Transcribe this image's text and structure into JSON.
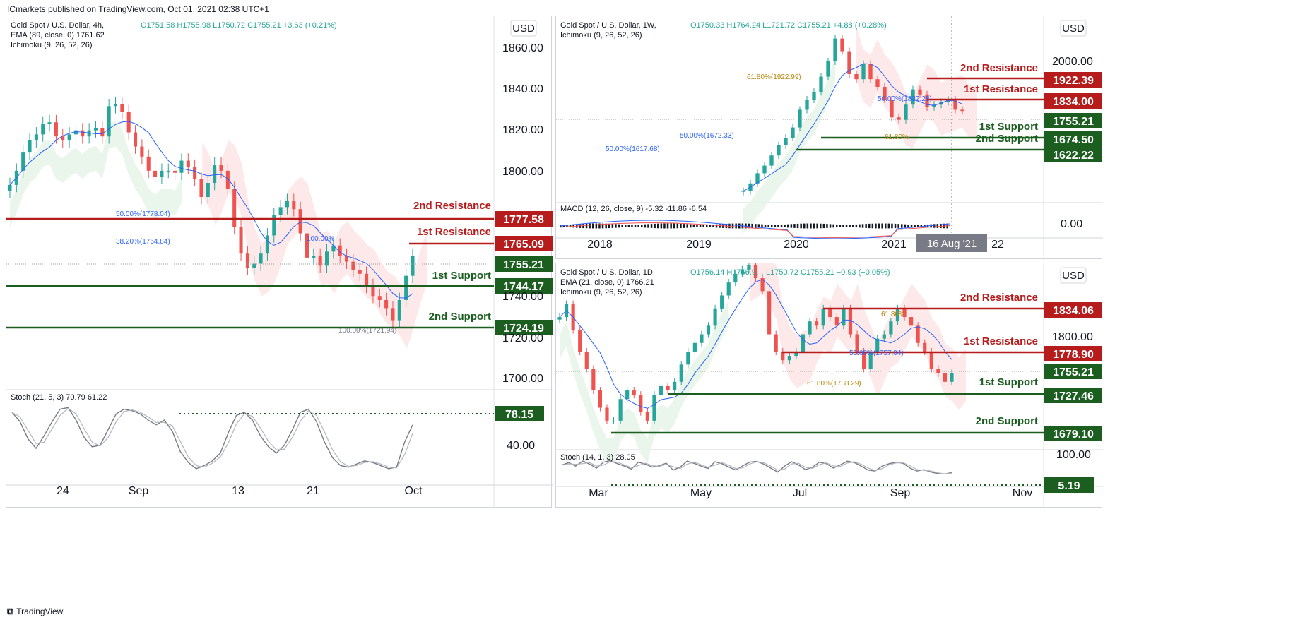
{
  "header": {
    "publisher": "ICmarkets published on TradingView.com, Oct 01, 2021 02:38 UTC+1"
  },
  "footer": {
    "brand": "TradingView"
  },
  "colors": {
    "resistance": "#b71c1c",
    "support": "#1b5e20",
    "current": "#1b5e20",
    "up_candle": "#26a69a",
    "down_candle": "#ef5350",
    "ema": "#2962ff",
    "fib_blue": "#2962ff",
    "fib_gold": "#b8860b",
    "stoch": "#787b86",
    "cloud_green": "#e8f5e9",
    "cloud_red": "#fde7e7",
    "date_badge": "#787b86"
  },
  "chart_data": [
    {
      "id": "h4",
      "type": "candlestick",
      "title": "Gold Spot / U.S. Dollar, 4h,",
      "ohlc": "O1751.58 H1755.98 L1750.72 C1755.21 +3.63 (+0.21%)",
      "indicators": [
        "EMA (89, close, 0)  1761.62",
        "Ichimoku (9, 26, 52, 26)"
      ],
      "currency": "USD",
      "ylim": [
        1690,
        1870
      ],
      "y_ticks": [
        "1860.00",
        "1840.00",
        "1820.00",
        "1800.00",
        "1740.00",
        "1720.00",
        "1700.00"
      ],
      "x_ticks": [
        "24",
        "Sep",
        "13",
        "21",
        "Oct"
      ],
      "levels": [
        {
          "label": "2nd Resistance",
          "value": "1777.58",
          "kind": "resistance"
        },
        {
          "label": "1st Resistance",
          "value": "1765.09",
          "kind": "resistance"
        },
        {
          "label": "",
          "value": "1755.21",
          "kind": "current"
        },
        {
          "label": "1st Support",
          "value": "1744.17",
          "kind": "support"
        },
        {
          "label": "2nd Support",
          "value": "1724.19",
          "kind": "support"
        }
      ],
      "fib_labels": [
        "50.00%(1778.04)",
        "38.20%(1764.84)",
        "100.00%",
        "100.00%(1721.94)"
      ],
      "closes": [
        1790,
        1797,
        1806,
        1812,
        1815,
        1820,
        1821,
        1814,
        1812,
        1815,
        1817,
        1814,
        1817,
        1818,
        1814,
        1829,
        1830,
        1826,
        1816,
        1809,
        1804,
        1797,
        1794,
        1797,
        1797,
        1796,
        1802,
        1799,
        1793,
        1784,
        1791,
        1800,
        1797,
        1788,
        1769,
        1756,
        1749,
        1751,
        1756,
        1765,
        1775,
        1779,
        1782,
        1778,
        1766,
        1754,
        1755,
        1750,
        1757,
        1760,
        1755,
        1752,
        1748,
        1746,
        1740,
        1735,
        1733,
        1729,
        1723,
        1733,
        1745,
        1755
      ],
      "stoch": {
        "label": "Stoch (21, 5, 3)",
        "k": "70.79",
        "d": "61.22",
        "level": "78.15",
        "y_tick": "40.00",
        "values": [
          82,
          70,
          48,
          36,
          52,
          70,
          86,
          88,
          72,
          50,
          38,
          40,
          60,
          80,
          86,
          84,
          80,
          72,
          66,
          72,
          58,
          32,
          18,
          10,
          14,
          20,
          30,
          56,
          78,
          82,
          72,
          52,
          38,
          30,
          40,
          60,
          82,
          86,
          70,
          44,
          24,
          14,
          12,
          16,
          20,
          18,
          14,
          10,
          12,
          44,
          66
        ]
      }
    },
    {
      "id": "w1",
      "type": "candlestick",
      "title": "Gold Spot / U.S. Dollar, 1W,",
      "ohlc": "O1750.33 H1764.24 L1721.72 C1755.21 +4.88 (+0.28%)",
      "indicators": [
        "Ichimoku (9, 26, 52, 26)"
      ],
      "currency": "USD",
      "ylim": [
        1500,
        2100
      ],
      "y_ticks": [
        "2000.00"
      ],
      "x_ticks": [
        "2018",
        "2019",
        "2020",
        "2021",
        "22"
      ],
      "date_badge": "16 Aug '21",
      "levels": [
        {
          "label": "2nd Resistance",
          "value": "1922.39",
          "kind": "resistance"
        },
        {
          "label": "1st Resistance",
          "value": "1834.00",
          "kind": "resistance"
        },
        {
          "label": "",
          "value": "1755.21",
          "kind": "current"
        },
        {
          "label": "1st Support",
          "value": "1674.50",
          "kind": "support"
        },
        {
          "label": "2nd Support",
          "value": "1622.22",
          "kind": "support"
        }
      ],
      "fib_labels": [
        "61.80%(1922.99)",
        "50.00%(1832.28)",
        "50.00%(1672.33)",
        "50.00%(1617.68)",
        "61.80%"
      ],
      "closes": [
        1440,
        1470,
        1510,
        1540,
        1580,
        1620,
        1650,
        1690,
        1760,
        1800,
        1830,
        1890,
        1950,
        2040,
        1990,
        1900,
        1880,
        1940,
        1880,
        1850,
        1800,
        1730,
        1720,
        1780,
        1840,
        1820,
        1770,
        1780,
        1790,
        1800,
        1760,
        1755
      ],
      "macd": {
        "label": "MACD (12, 26, close, 9)",
        "v1": "-5.32",
        "v2": "-11.86",
        "v3": "-6.54",
        "y_tick": "0.00"
      }
    },
    {
      "id": "d1",
      "type": "candlestick",
      "title": "Gold Spot / U.S. Dollar, 1D,",
      "ohlc": "O1756.14 H1756.9… L1750.72 C1755.21 −0.93 (−0.05%)",
      "indicators": [
        "EMA (21, close, 0)  1766.21",
        "Ichimoku (9, 26, 52, 26)"
      ],
      "currency": "USD",
      "ylim": [
        1668,
        1874
      ],
      "y_ticks": [
        "1800.00"
      ],
      "x_ticks": [
        "Mar",
        "May",
        "Jul",
        "Sep",
        "Nov"
      ],
      "levels": [
        {
          "label": "2nd Resistance",
          "value": "1834.06",
          "kind": "resistance"
        },
        {
          "label": "1st Resistance",
          "value": "1778.90",
          "kind": "resistance"
        },
        {
          "label": "",
          "value": "1755.21",
          "kind": "current"
        },
        {
          "label": "1st Support",
          "value": "1727.46",
          "kind": "support"
        },
        {
          "label": "2nd Support",
          "value": "1679.10",
          "kind": "support"
        }
      ],
      "fib_labels": [
        "61.80%",
        "50.00%(1757.04)",
        "61.80%(1738.29)"
      ],
      "closes": [
        1820,
        1835,
        1805,
        1780,
        1760,
        1735,
        1715,
        1700,
        1700,
        1725,
        1735,
        1730,
        1710,
        1700,
        1730,
        1740,
        1735,
        1745,
        1765,
        1780,
        1790,
        1800,
        1810,
        1830,
        1845,
        1860,
        1870,
        1875,
        1880,
        1865,
        1850,
        1800,
        1780,
        1770,
        1775,
        1780,
        1800,
        1815,
        1810,
        1830,
        1820,
        1810,
        1830,
        1800,
        1780,
        1760,
        1780,
        1795,
        1800,
        1815,
        1830,
        1820,
        1810,
        1790,
        1780,
        1760,
        1755,
        1745,
        1755
      ],
      "stoch": {
        "label": "Stoch (14, 1, 3)",
        "k": "28.05",
        "level": "5.19",
        "y_tick": "100.00",
        "values": [
          65,
          78,
          60,
          85,
          70,
          50,
          80,
          88,
          72,
          60,
          45,
          80,
          70,
          55,
          62,
          75,
          40,
          55,
          85,
          74,
          60,
          48,
          82,
          72,
          55,
          40,
          62,
          80,
          84,
          70,
          50,
          30,
          60,
          82,
          66,
          42,
          55,
          80,
          72,
          50,
          66,
          85,
          78,
          60,
          40,
          35,
          60,
          72,
          80,
          74,
          50,
          35,
          42,
          30,
          22,
          20,
          28
        ]
      }
    }
  ]
}
